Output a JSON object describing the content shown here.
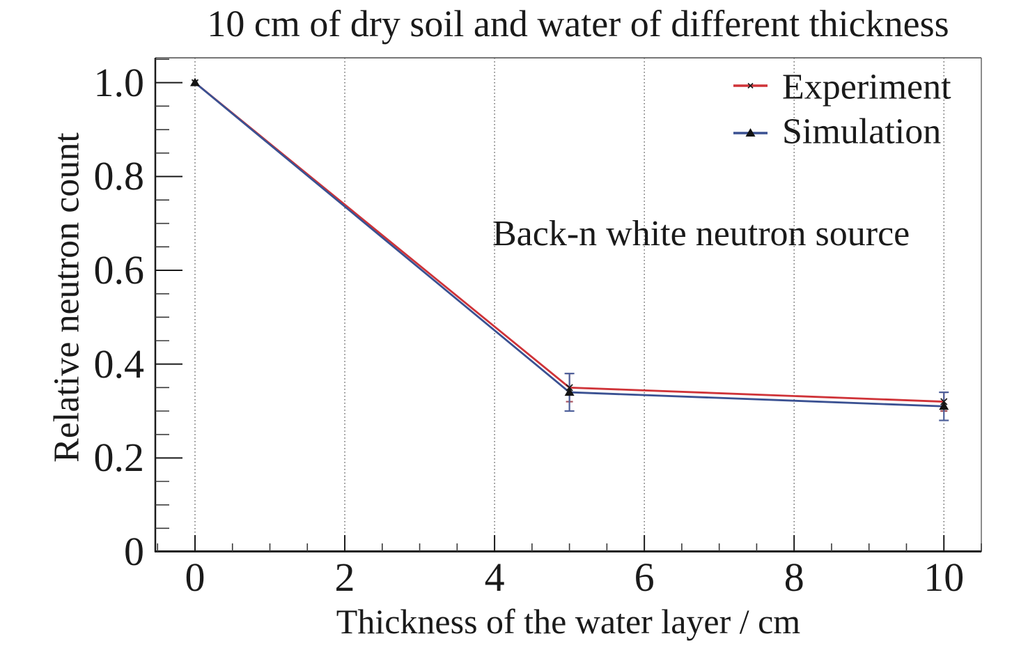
{
  "chart_data": {
    "type": "line",
    "title": "10 cm of dry soil and water of different thickness",
    "xlabel": "Thickness of the water layer / cm",
    "ylabel": "Relative neutron count",
    "annotation": "Back-n white neutron source",
    "xlim": [
      -0.53,
      10.5
    ],
    "ylim": [
      0,
      1.053
    ],
    "x_ticks": {
      "values": [
        0,
        2,
        4,
        6,
        8,
        10
      ],
      "labels": [
        "0",
        "2",
        "4",
        "6",
        "8",
        "10"
      ]
    },
    "y_ticks": {
      "values": [
        0,
        0.2,
        0.4,
        0.6,
        0.8,
        1.0
      ],
      "labels": [
        "0",
        "0.2",
        "0.4",
        "0.6",
        "0.8",
        "1.0"
      ]
    },
    "x_minor_step": 0.5,
    "y_minor_step": 0.05,
    "grid": {
      "vertical": true,
      "horizontal": false,
      "style": "dotted"
    },
    "legend": {
      "position": "top-right-inside",
      "entries": [
        "Experiment",
        "Simulation"
      ]
    },
    "series": [
      {
        "name": "Experiment",
        "x": [
          0,
          5,
          10
        ],
        "y": [
          1.0,
          0.35,
          0.32
        ],
        "yerr": [
          0,
          0.03,
          0.02
        ],
        "color": "#cf3338",
        "marker": "x",
        "marker_color": "#1c1c1c",
        "errorbar_color": "#a85560"
      },
      {
        "name": "Simulation",
        "x": [
          0,
          5,
          10
        ],
        "y": [
          1.0,
          0.34,
          0.31
        ],
        "yerr": [
          0,
          0.04,
          0.03
        ],
        "color": "#3a5192",
        "marker": "triangle",
        "marker_color": "#141414",
        "errorbar_color": "#4f619b"
      }
    ]
  },
  "colors": {
    "background": "#ffffff",
    "text": "#1a1a1a",
    "axis_major": "#1a1a1a",
    "axis_minor": "#3a3a3a",
    "frame_top": "#4a4a4a",
    "frame_right": "#666666",
    "grid": "#444444"
  }
}
